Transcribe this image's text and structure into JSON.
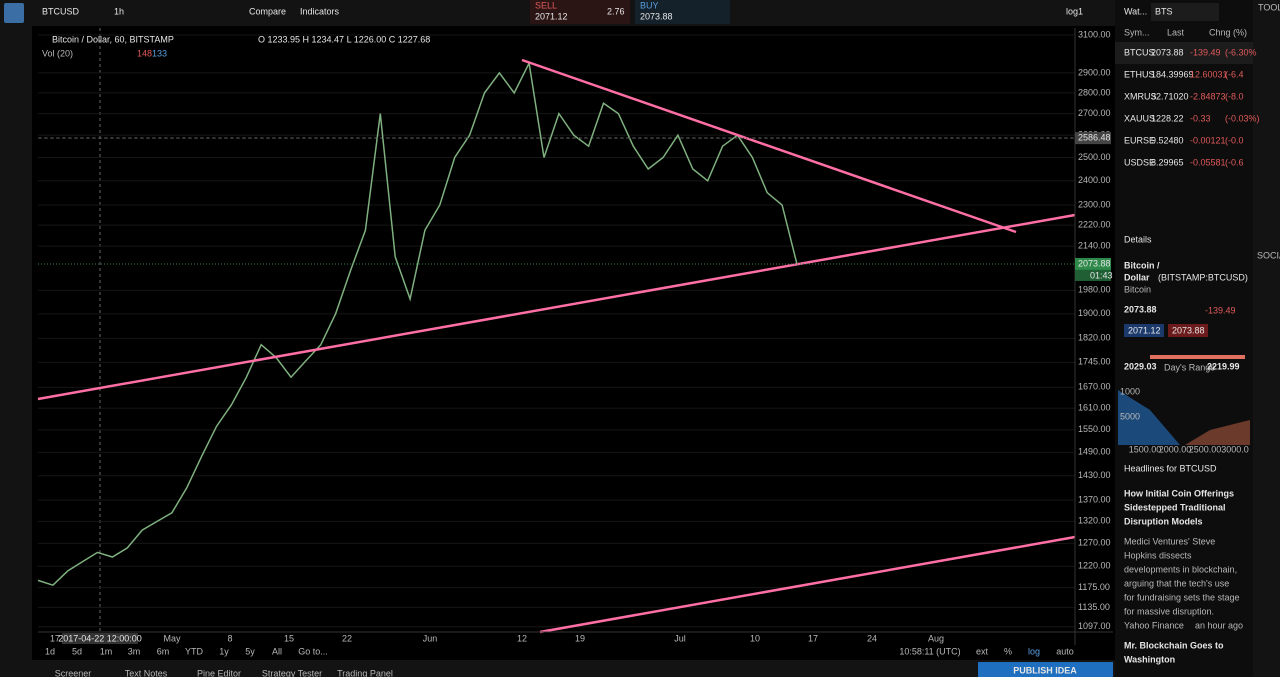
{
  "toolbar": {
    "symbol": "BTCUSD",
    "interval": "1h",
    "compare": "Compare",
    "indicators": "Indicators",
    "sell_label": "SELL",
    "sell_price": "2071.12",
    "spread": "2.76",
    "buy_label": "BUY",
    "buy_price": "2073.88",
    "layout": "log1"
  },
  "chart_data": {
    "type": "line",
    "title": "Bitcoin / Dollar, 60, BITSTAMP",
    "ohlc": "O 1233.95 H 1234.47 L 1226.00 C 1227.68",
    "volume_label": "Vol (20)",
    "volume_values": [
      "148",
      "133"
    ],
    "x_labels": [
      "17",
      "2017-04-22 12:00:00",
      "May",
      "8",
      "15",
      "22",
      "Jun",
      "12",
      "19",
      "Jul",
      "10",
      "17",
      "24",
      "Aug"
    ],
    "series": [
      {
        "color": "#7fb07f",
        "values": [
          1190,
          1180,
          1210,
          1230,
          1250,
          1240,
          1260,
          1300,
          1320,
          1340,
          1400,
          1480,
          1560,
          1620,
          1700,
          1800,
          1760,
          1700,
          1750,
          1800,
          1900,
          2050,
          2200,
          2700,
          2100,
          1950,
          2200,
          2300,
          2500,
          2600,
          2800,
          2900,
          2800,
          2950,
          2500,
          2700,
          2600,
          2550,
          2750,
          2700,
          2550,
          2450,
          2500,
          2600,
          2450,
          2400,
          2550,
          2600,
          2500,
          2350,
          2300,
          2073
        ]
      }
    ],
    "ylim": [
      1087,
      3138
    ],
    "log_scale": true,
    "grid": true,
    "yticks": [
      {
        "value": 3100,
        "label": "3100.00"
      },
      {
        "value": 2900,
        "label": "2900.00"
      },
      {
        "value": 2800,
        "label": "2800.00"
      },
      {
        "value": 2700,
        "label": "2700.00"
      },
      {
        "value": 2600,
        "label": "2600.00"
      },
      {
        "value": 2500,
        "label": "2500.00"
      },
      {
        "value": 2400,
        "label": "2400.00"
      },
      {
        "value": 2300,
        "label": "2300.00"
      },
      {
        "value": 2220,
        "label": "2220.00"
      },
      {
        "value": 2140,
        "label": "2140.00"
      },
      {
        "value": 1980,
        "label": "1980.00"
      },
      {
        "value": 1900,
        "label": "1900.00"
      },
      {
        "value": 1820,
        "label": "1820.00"
      },
      {
        "value": 1745,
        "label": "1745.00"
      },
      {
        "value": 1670,
        "label": "1670.00"
      },
      {
        "value": 1610,
        "label": "1610.00"
      },
      {
        "value": 1550,
        "label": "1550.00"
      },
      {
        "value": 1490,
        "label": "1490.00"
      },
      {
        "value": 1430,
        "label": "1430.00"
      },
      {
        "value": 1370,
        "label": "1370.00"
      },
      {
        "value": 1320,
        "label": "1320.00"
      },
      {
        "value": 1270,
        "label": "1270.00"
      },
      {
        "value": 1220,
        "label": "1220.00"
      },
      {
        "value": 1175,
        "label": "1175.00"
      },
      {
        "value": 1135,
        "label": "1135.00"
      },
      {
        "value": 1097,
        "label": "1097.00"
      }
    ],
    "price_tags": [
      {
        "value": 2586.48,
        "label": "2586.48"
      },
      {
        "value": 2073.88,
        "label": "2073.88"
      }
    ],
    "countdown": "01:43"
  },
  "bottom": {
    "ranges": [
      "1d",
      "5d",
      "1m",
      "3m",
      "6m",
      "YTD",
      "1y",
      "5y",
      "All",
      "Go to..."
    ],
    "time": "10:58:11 (UTC)",
    "options": [
      "ext",
      "%",
      "log",
      "auto"
    ],
    "tabs": [
      "Screener",
      "Text Notes",
      "Pine Editor",
      "Strategy Tester",
      "Trading Panel"
    ],
    "publish": "PUBLISH IDEA"
  },
  "watchlist": {
    "title": "Wat...",
    "search": "BTS",
    "headers": [
      "Sym...",
      "Last",
      "Chng (%)"
    ],
    "rows": [
      [
        "BTCUS",
        "2073.88",
        "-139.49",
        "(-6.30%"
      ],
      [
        "ETHUS",
        "184.39969",
        "12.60031",
        "(-6.4"
      ],
      [
        "XMRUS",
        "32.71020",
        "-2.84873",
        "(-8.0"
      ],
      [
        "XAUUS",
        "1228.22",
        "-0.33",
        "(-0.03%)"
      ],
      [
        "EURSE",
        "9.52480",
        "-0.00121",
        "(-0.0"
      ],
      [
        "USDSE",
        "8.29965",
        "-0.05581",
        "(-0.6"
      ]
    ]
  },
  "details": {
    "title": "Details",
    "name": "Bitcoin /",
    "name2": "Dollar",
    "ticker": "(BITSTAMP:BTCUSD)",
    "type": "Bitcoin",
    "price": "2073.88",
    "change": "-139.49",
    "bid": "2071.12",
    "ask": "2073.88",
    "low": "2029.03",
    "range_label": "Day's Range",
    "high": "2219.99",
    "depth_y": [
      "1000",
      "5000"
    ],
    "depth_x": [
      "1500.00",
      "2000.00",
      "2500.00",
      "3000.0"
    ]
  },
  "headlines": {
    "title": "Headlines for BTCUSD",
    "items": [
      {
        "title": [
          "How Initial Coin Offerings",
          "Sidestepped Traditional",
          "Disruption Models"
        ],
        "body": [
          "Medici Ventures' Steve",
          "Hopkins dissects",
          "developments in blockchain,",
          "arguing that the tech's use",
          "for fundraising sets the stage",
          "for massive disruption."
        ],
        "source": "Yahoo Finance",
        "time": "an hour ago"
      },
      {
        "title": [
          "Mr. Blockchain Goes to",
          "Washington"
        ]
      }
    ]
  },
  "sidebar": {
    "tools": "TOOLS",
    "social": "SOCIAL"
  }
}
